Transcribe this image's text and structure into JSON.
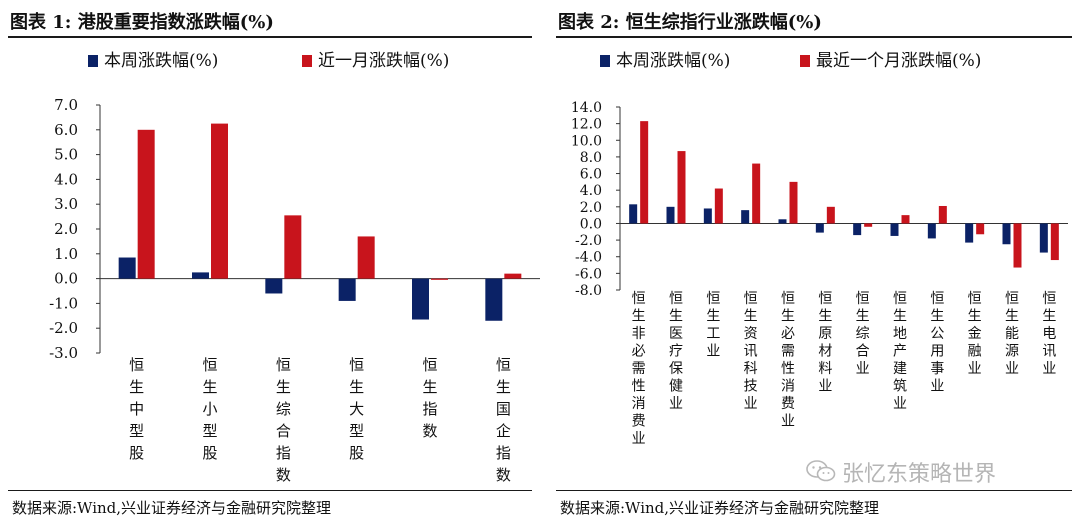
{
  "colors": {
    "weekly": "#0b2266",
    "monthly": "#c8141c",
    "axis": "#333333"
  },
  "watermark": {
    "icon": "wechat-icon",
    "text": "张忆东策略世界"
  },
  "chart_data": [
    {
      "type": "bar",
      "title": "图表 1:  港股重要指数涨跌幅(%)",
      "source": "数据来源:Wind,兴业证券经济与金融研究院整理",
      "categories": [
        "恒生中型股",
        "恒生小型股",
        "恒生综合指数",
        "恒生大型股",
        "恒生指数",
        "恒生国企指数"
      ],
      "series": [
        {
          "name": "本周涨跌幅(%)",
          "values": [
            0.85,
            0.25,
            -0.6,
            -0.9,
            -1.65,
            -1.7
          ]
        },
        {
          "name": "近一月涨跌幅(%)",
          "values": [
            6.0,
            6.25,
            2.55,
            1.7,
            -0.05,
            0.2
          ]
        }
      ],
      "yticks": [
        "7.0",
        "6.0",
        "5.0",
        "4.0",
        "3.0",
        "2.0",
        "1.0",
        "0.0",
        "-1.0",
        "-2.0",
        "-3.0"
      ],
      "ylim": [
        -3,
        7
      ],
      "legend": "top"
    },
    {
      "type": "bar",
      "title": "图表 2:  恒生综指行业涨跌幅(%)",
      "source": "数据来源:Wind,兴业证券经济与金融研究院整理",
      "categories": [
        "恒生非必需性消费业",
        "恒生医疗保健业",
        "恒生工业",
        "恒生资讯科技业",
        "恒生必需性消费业",
        "恒生原材料业",
        "恒生综合业",
        "恒生地产建筑业",
        "恒生公用事业",
        "恒生金融业",
        "恒生能源业",
        "恒生电讯业"
      ],
      "series": [
        {
          "name": "本周涨跌幅(%)",
          "values": [
            2.3,
            2.0,
            1.8,
            1.6,
            0.5,
            -1.1,
            -1.4,
            -1.5,
            -1.8,
            -2.3,
            -2.5,
            -3.5
          ]
        },
        {
          "name": "最近一个月涨跌幅(%)",
          "values": [
            12.3,
            8.7,
            4.2,
            7.2,
            5.0,
            2.0,
            -0.4,
            1.0,
            2.1,
            -1.3,
            -5.3,
            -4.4
          ]
        }
      ],
      "yticks": [
        "14.0",
        "12.0",
        "10.0",
        "8.0",
        "6.0",
        "4.0",
        "2.0",
        "0.0",
        "-2.0",
        "-4.0",
        "-6.0",
        "-8.0"
      ],
      "ylim": [
        -8,
        14
      ],
      "legend": "top"
    }
  ]
}
